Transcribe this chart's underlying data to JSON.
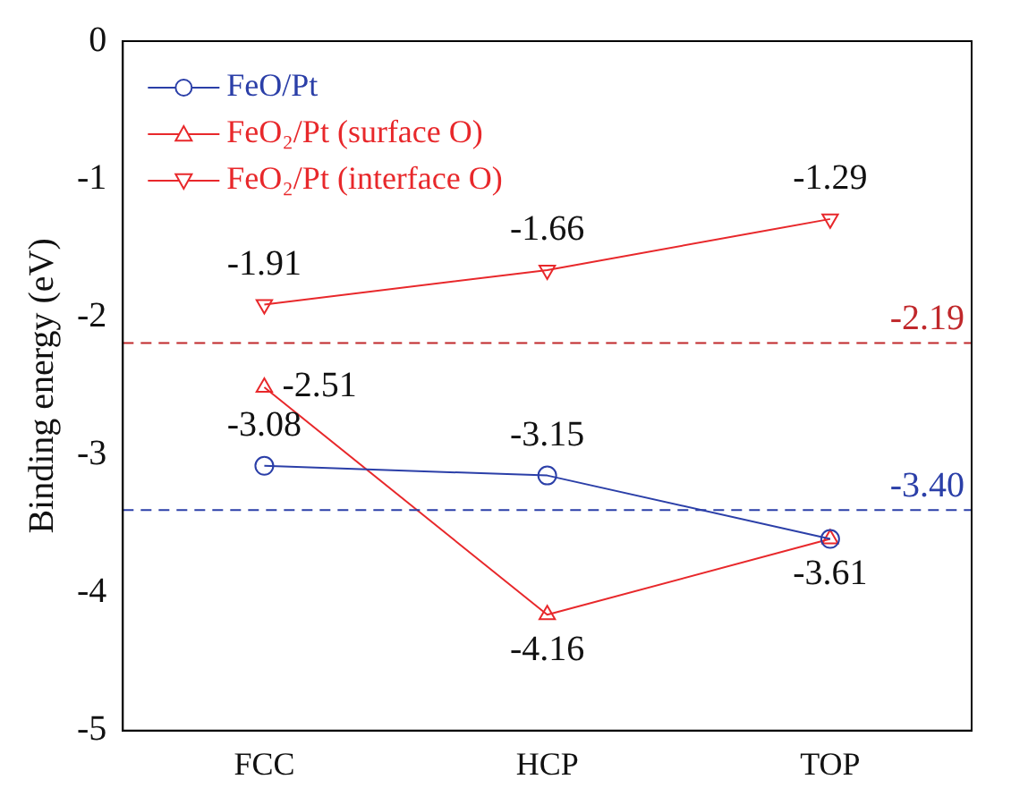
{
  "chart_data": {
    "type": "line",
    "ylabel": "Binding energy (eV)",
    "categories": [
      "FCC",
      "HCP",
      "TOP"
    ],
    "ylim": [
      -5,
      0
    ],
    "yticks": [
      -5,
      -4,
      -3,
      -2,
      -1,
      0
    ],
    "legend": "top left",
    "line_style": "solid",
    "grid": false,
    "series": [
      {
        "name": "FeO/Pt",
        "color": "#2b3fa8",
        "marker": "circle",
        "values": [
          -3.08,
          -3.15,
          -3.61
        ],
        "value_labels": [
          "-3.08",
          "-3.15",
          null
        ]
      },
      {
        "name": "FeO₂/Pt (surface O)",
        "color": "#e8282b",
        "marker": "triangle",
        "values": [
          -2.51,
          -4.16,
          -3.61
        ],
        "value_labels": [
          "-2.51",
          "-4.16",
          "-3.61"
        ]
      },
      {
        "name": "FeO₂/Pt (interface O)",
        "color": "#e8282b",
        "marker": "triangle-down",
        "values": [
          -1.91,
          -1.66,
          -1.29
        ],
        "value_labels": [
          "-1.91",
          "-1.66",
          "-1.29"
        ]
      }
    ],
    "ref_lines": [
      {
        "axis": "y",
        "value": -2.19,
        "label": "-2.19",
        "color": "#c0282b",
        "line_style": "dashed"
      },
      {
        "axis": "y",
        "value": -3.4,
        "label": "-3.40",
        "color": "#2b3fa8",
        "line_style": "dashed"
      }
    ]
  }
}
